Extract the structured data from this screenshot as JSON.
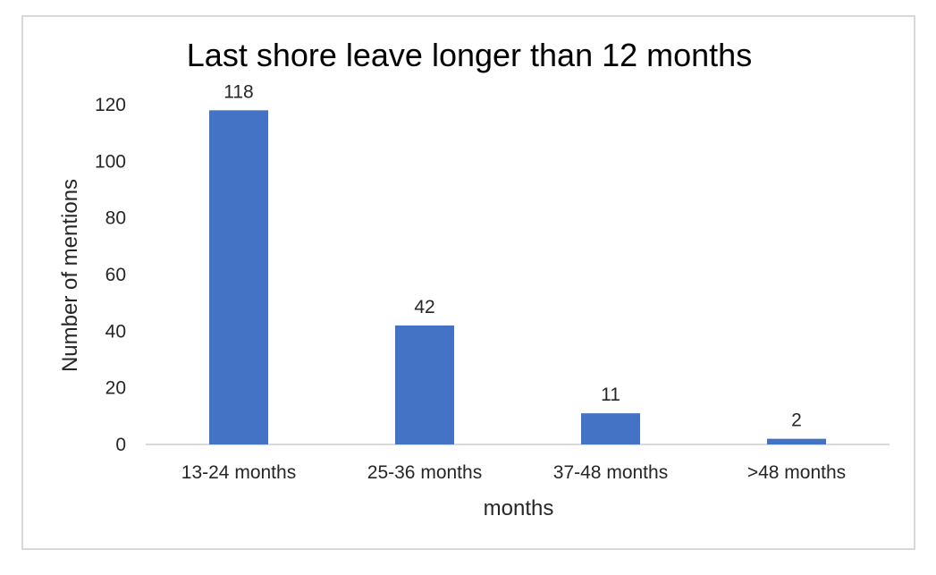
{
  "chart_data": {
    "type": "bar",
    "title": "Last shore leave longer than 12 months",
    "xlabel": "months",
    "ylabel": "Number of mentions",
    "categories": [
      "13-24 months",
      "25-36 months",
      "37-48 months",
      ">48 months"
    ],
    "values": [
      118,
      42,
      11,
      2
    ],
    "data_labels": [
      "118",
      "42",
      "11",
      "2"
    ],
    "ylim": [
      0,
      120
    ],
    "yticks": [
      0,
      20,
      40,
      60,
      80,
      100,
      120
    ],
    "grid": false,
    "legend": "none",
    "colors": {
      "bar": "#4472C4",
      "axis": "#d9d9d9",
      "border": "#d9d9d9"
    }
  }
}
